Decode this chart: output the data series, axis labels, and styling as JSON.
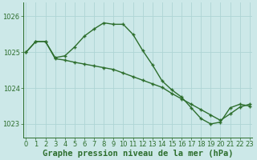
{
  "line1_x": [
    0,
    1,
    2,
    3,
    4,
    5,
    6,
    7,
    8,
    9,
    10,
    11,
    12,
    13,
    14,
    15,
    16,
    17,
    18,
    19,
    20,
    21,
    22,
    23
  ],
  "line1_y": [
    1025.0,
    1025.3,
    1025.3,
    1024.85,
    1024.9,
    1025.15,
    1025.45,
    1025.65,
    1025.82,
    1025.78,
    1025.78,
    1025.5,
    1025.05,
    1024.65,
    1024.2,
    1023.95,
    1023.75,
    1023.45,
    1023.15,
    1023.0,
    1023.05,
    1023.45,
    1023.55,
    1023.5
  ],
  "line2_x": [
    0,
    1,
    2,
    3,
    4,
    5,
    6,
    7,
    8,
    9,
    10,
    11,
    12,
    13,
    14,
    15,
    16,
    17,
    18,
    19,
    20,
    21,
    22,
    23
  ],
  "line2_y": [
    1025.0,
    1025.3,
    1025.3,
    1024.82,
    1024.78,
    1024.72,
    1024.67,
    1024.62,
    1024.57,
    1024.52,
    1024.42,
    1024.32,
    1024.22,
    1024.12,
    1024.02,
    1023.85,
    1023.7,
    1023.55,
    1023.4,
    1023.25,
    1023.1,
    1023.28,
    1023.47,
    1023.55
  ],
  "ylim_min": 1022.62,
  "ylim_max": 1026.38,
  "yticks": [
    1023,
    1024,
    1025,
    1026
  ],
  "xlim_min": -0.3,
  "xlim_max": 23.3,
  "line_color": "#2d6e2d",
  "bg_color": "#cce8e8",
  "grid_color": "#aed4d4",
  "xlabel": "Graphe pression niveau de la mer (hPa)",
  "xlabel_fontsize": 7.5,
  "tick_fontsize": 6.0,
  "marker": "+",
  "markersize": 3.5,
  "markeredgewidth": 1.0,
  "linewidth": 1.0
}
